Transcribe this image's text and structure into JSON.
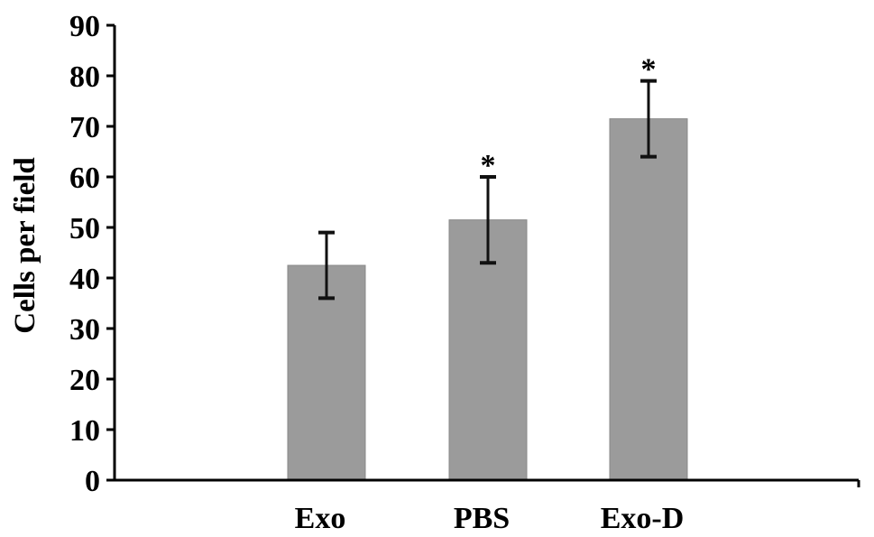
{
  "chart_data": {
    "type": "bar",
    "title": "",
    "xlabel": "",
    "ylabel": "Cells per field",
    "ylim": [
      0,
      90
    ],
    "yticks": [
      0,
      10,
      20,
      30,
      40,
      50,
      60,
      70,
      80,
      90
    ],
    "categories": [
      "Exo",
      "PBS",
      "Exo-D"
    ],
    "values": [
      42.5,
      51.5,
      71.5
    ],
    "error_low": [
      36,
      43,
      64
    ],
    "error_high": [
      49,
      60,
      79
    ],
    "significance": [
      "",
      "*",
      "*"
    ],
    "bar_color": "#9b9b9b",
    "grid": false,
    "legend": "none"
  }
}
